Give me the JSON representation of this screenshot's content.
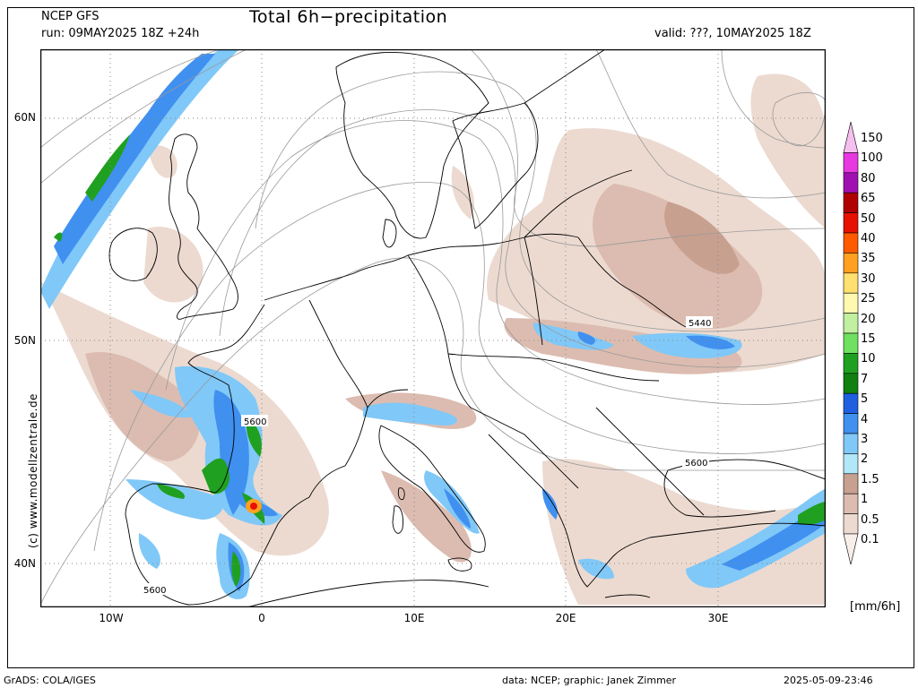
{
  "header": {
    "model": "NCEP GFS",
    "run": "run: 09MAY2025 18Z +24h",
    "title": "Total 6h−precipitation",
    "valid": "valid: ???, 10MAY2025 18Z"
  },
  "axes": {
    "lat_labels": [
      "60N",
      "50N",
      "40N"
    ],
    "lon_labels": [
      "10W",
      "0",
      "10E",
      "20E",
      "30E"
    ]
  },
  "contours": {
    "labels": [
      "5440",
      "5600",
      "5600",
      "5600"
    ]
  },
  "copyright": "(c)  www.modellzentrale.de",
  "legend": {
    "units": "[mm/6h]",
    "levels": [
      "150",
      "100",
      "80",
      "65",
      "50",
      "40",
      "35",
      "30",
      "25",
      "20",
      "15",
      "10",
      "7",
      "5",
      "4",
      "3",
      "2",
      "1.5",
      "1",
      "0.5",
      "0.1"
    ],
    "colors": [
      "#f5c0f0",
      "#e838e0",
      "#a010b0",
      "#b00000",
      "#e81000",
      "#ff5a00",
      "#ffa020",
      "#ffe070",
      "#fff8b0",
      "#c0f0a0",
      "#70e060",
      "#20a020",
      "#108010",
      "#2060e0",
      "#4090f0",
      "#80c8f8",
      "#b0e8f8",
      "#c8a090",
      "#dcbcb0",
      "#ecdad0",
      "#f8eeea"
    ]
  },
  "footer": {
    "left": "GrADS: COLA/IGES",
    "mid": "data: NCEP;  graphic: Janek Zimmer",
    "right": "2025-05-09-23:46"
  }
}
